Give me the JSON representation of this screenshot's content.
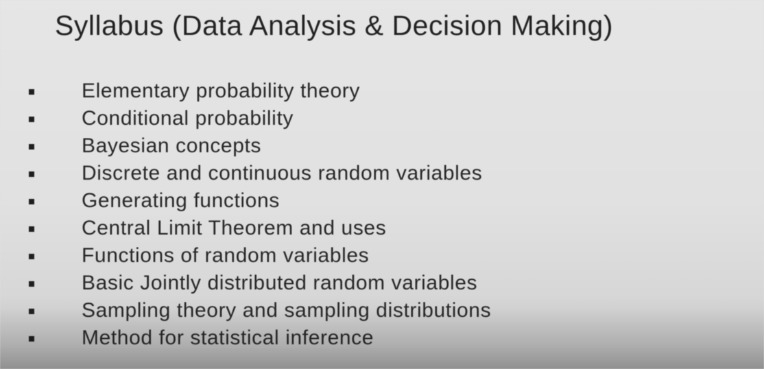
{
  "slide": {
    "title": "Syllabus (Data Analysis & Decision Making)",
    "items": [
      "Elementary probability theory",
      "Conditional probability",
      "Bayesian concepts",
      "Discrete and continuous random variables",
      "Generating functions",
      "Central Limit Theorem and uses",
      "Functions of random variables",
      "Basic Jointly distributed random variables",
      "Sampling theory and sampling distributions",
      "Method for statistical inference"
    ]
  },
  "colors": {
    "background": "#e1e1e1",
    "text": "#262626",
    "bullet": "#1e1e1e"
  }
}
